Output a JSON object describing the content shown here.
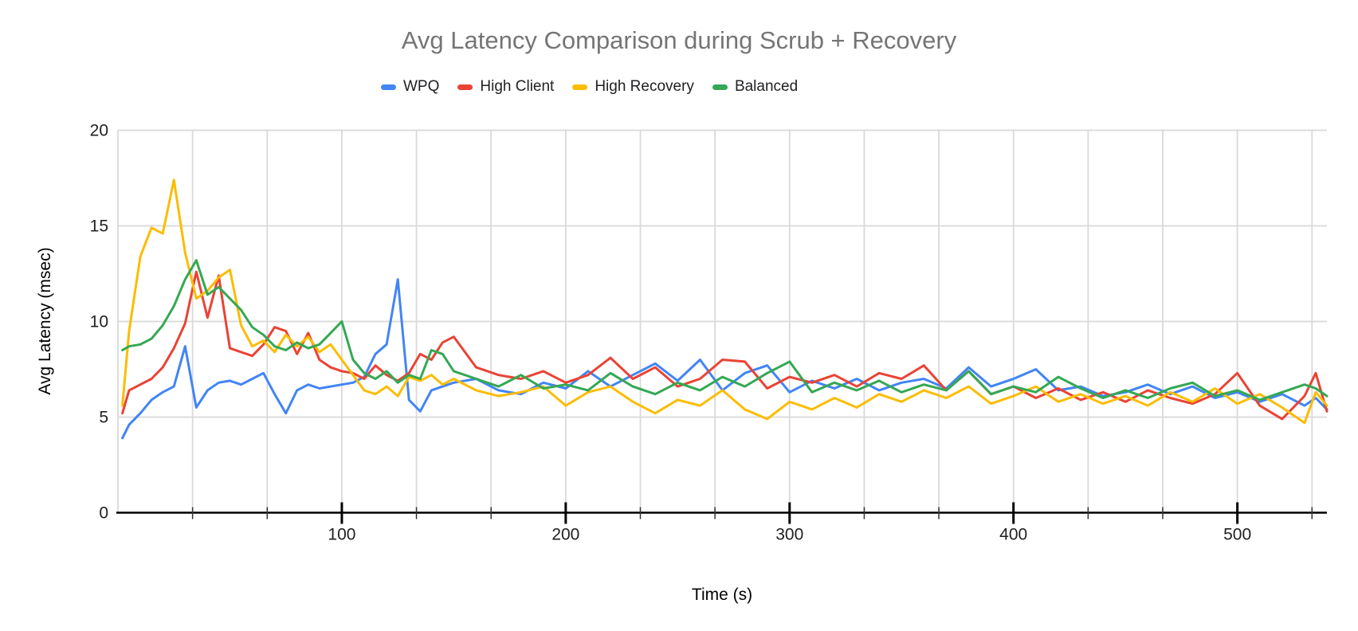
{
  "chart_data": {
    "type": "line",
    "title": "Avg Latency Comparison during Scrub + Recovery",
    "xlabel": "Time (s)",
    "ylabel": "Avg Latency (msec)",
    "xlim": [
      0,
      540
    ],
    "ylim": [
      0,
      20
    ],
    "x_ticks": [
      100,
      200,
      300,
      400,
      500
    ],
    "y_ticks": [
      0,
      5,
      10,
      15,
      20
    ],
    "x_minor_step": 33.3333,
    "grid": true,
    "legend_position": "top",
    "x": [
      2,
      5,
      10,
      15,
      20,
      25,
      30,
      35,
      40,
      45,
      50,
      55,
      60,
      65,
      70,
      75,
      80,
      85,
      90,
      95,
      100,
      105,
      110,
      115,
      120,
      125,
      130,
      135,
      140,
      145,
      150,
      160,
      170,
      180,
      190,
      200,
      210,
      220,
      230,
      240,
      250,
      260,
      270,
      280,
      290,
      300,
      310,
      320,
      330,
      340,
      350,
      360,
      370,
      380,
      390,
      400,
      410,
      420,
      430,
      440,
      450,
      460,
      470,
      480,
      490,
      500,
      510,
      520,
      530,
      535,
      540
    ],
    "series": [
      {
        "name": "WPQ",
        "color": "#4285F4",
        "values": [
          3.9,
          4.6,
          5.2,
          5.9,
          6.3,
          6.6,
          8.7,
          5.5,
          6.4,
          6.8,
          6.9,
          6.7,
          7.0,
          7.3,
          6.2,
          5.2,
          6.4,
          6.7,
          6.5,
          6.6,
          6.7,
          6.8,
          7.1,
          8.3,
          8.8,
          12.2,
          5.9,
          5.3,
          6.4,
          6.6,
          6.8,
          7.0,
          6.4,
          6.2,
          6.8,
          6.5,
          7.4,
          6.6,
          7.2,
          7.8,
          6.9,
          8.0,
          6.4,
          7.3,
          7.7,
          6.3,
          6.9,
          6.5,
          7.0,
          6.4,
          6.8,
          7.0,
          6.5,
          7.6,
          6.6,
          7.0,
          7.5,
          6.4,
          6.6,
          6.1,
          6.3,
          6.7,
          6.2,
          6.6,
          6.0,
          6.3,
          5.8,
          6.2,
          5.6,
          6.0,
          5.4
        ]
      },
      {
        "name": "High Client",
        "color": "#EA4335",
        "values": [
          5.2,
          6.4,
          6.7,
          7.0,
          7.6,
          8.6,
          9.9,
          12.6,
          10.2,
          12.4,
          8.6,
          8.4,
          8.2,
          8.8,
          9.7,
          9.5,
          8.3,
          9.4,
          8.0,
          7.6,
          7.4,
          7.3,
          7.0,
          7.7,
          7.2,
          6.9,
          7.3,
          8.3,
          8.0,
          8.9,
          9.2,
          7.6,
          7.2,
          7.0,
          7.4,
          6.8,
          7.2,
          8.1,
          7.0,
          7.6,
          6.6,
          7.0,
          8.0,
          7.9,
          6.5,
          7.1,
          6.8,
          7.2,
          6.6,
          7.3,
          7.0,
          7.7,
          6.4,
          7.4,
          6.2,
          6.6,
          6.0,
          6.5,
          5.9,
          6.3,
          5.8,
          6.4,
          6.0,
          5.7,
          6.2,
          7.3,
          5.6,
          4.9,
          6.1,
          7.3,
          5.3
        ]
      },
      {
        "name": "High Recovery",
        "color": "#FBBC04",
        "values": [
          5.6,
          9.5,
          13.4,
          14.9,
          14.6,
          17.4,
          13.6,
          11.2,
          11.6,
          12.3,
          12.7,
          9.8,
          8.7,
          9.0,
          8.4,
          9.3,
          8.7,
          9.2,
          8.4,
          8.8,
          8.0,
          7.2,
          6.4,
          6.2,
          6.6,
          6.1,
          7.1,
          6.9,
          7.2,
          6.7,
          7.0,
          6.4,
          6.1,
          6.3,
          6.6,
          5.6,
          6.3,
          6.6,
          5.8,
          5.2,
          5.9,
          5.6,
          6.4,
          5.4,
          4.9,
          5.8,
          5.4,
          6.0,
          5.5,
          6.2,
          5.8,
          6.4,
          6.0,
          6.6,
          5.7,
          6.1,
          6.6,
          5.8,
          6.2,
          5.7,
          6.1,
          5.6,
          6.3,
          5.8,
          6.5,
          5.7,
          6.2,
          5.5,
          4.7,
          6.3,
          5.6
        ]
      },
      {
        "name": "Balanced",
        "color": "#34A853",
        "values": [
          8.5,
          8.7,
          8.8,
          9.1,
          9.8,
          10.8,
          12.2,
          13.2,
          11.4,
          11.8,
          11.2,
          10.6,
          9.7,
          9.3,
          8.7,
          8.5,
          8.9,
          8.6,
          8.8,
          9.4,
          10.0,
          8.0,
          7.3,
          7.0,
          7.4,
          6.8,
          7.2,
          7.0,
          8.5,
          8.3,
          7.4,
          7.0,
          6.6,
          7.2,
          6.5,
          6.7,
          6.4,
          7.3,
          6.6,
          6.2,
          6.8,
          6.4,
          7.1,
          6.6,
          7.3,
          7.9,
          6.3,
          6.8,
          6.4,
          6.9,
          6.3,
          6.7,
          6.4,
          7.4,
          6.2,
          6.6,
          6.3,
          7.1,
          6.5,
          6.0,
          6.4,
          6.0,
          6.5,
          6.8,
          6.1,
          6.4,
          5.9,
          6.3,
          6.7,
          6.5,
          6.1
        ]
      }
    ],
    "colors": {
      "title_gray": "#757575",
      "gridline": "#D9D9D9",
      "axis_line": "#000000",
      "tick_label": "#212121"
    }
  }
}
